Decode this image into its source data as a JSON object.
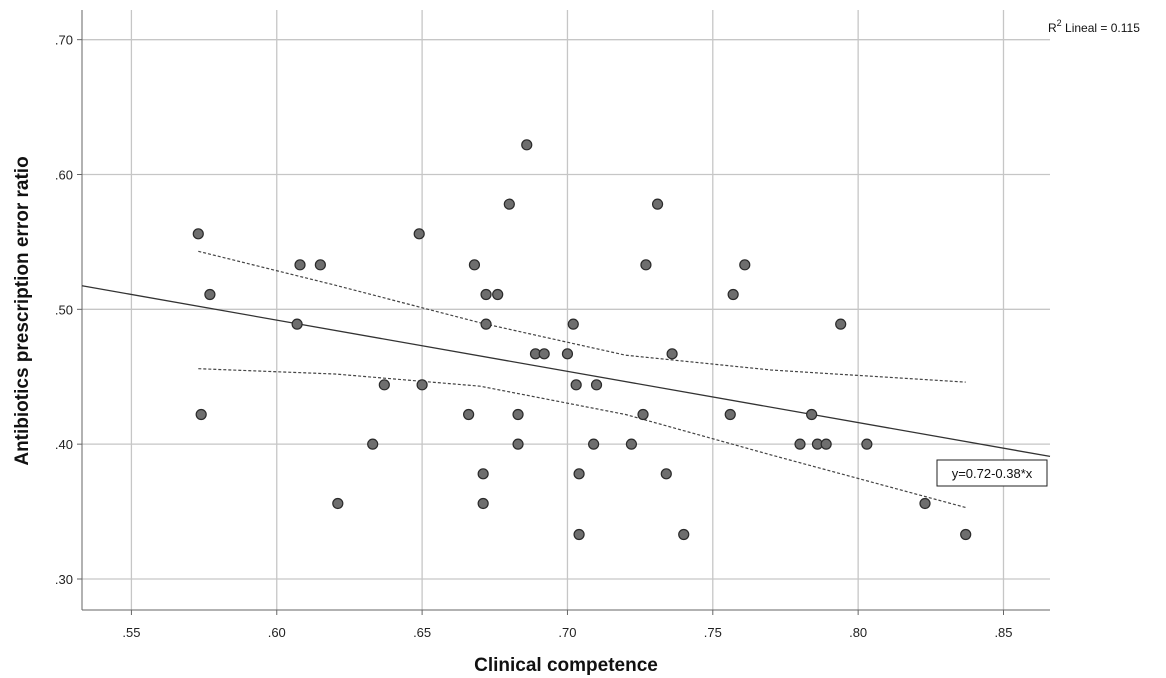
{
  "chart_data": {
    "type": "scatter",
    "title": "",
    "xlabel": "Clinical competence",
    "ylabel": "Antibiotics prescription error ratio",
    "xlim": [
      0.533,
      0.866
    ],
    "ylim": [
      0.277,
      0.722
    ],
    "xticks": [
      0.55,
      0.6,
      0.65,
      0.7,
      0.75,
      0.8,
      0.85
    ],
    "xtick_labels": [
      ".55",
      ".60",
      ".65",
      ".70",
      ".75",
      ".80",
      ".85"
    ],
    "yticks": [
      0.3,
      0.4,
      0.5,
      0.6,
      0.7
    ],
    "ytick_labels": [
      ".30",
      ".40",
      ".50",
      ".60",
      ".70"
    ],
    "grid": true,
    "points": [
      {
        "x": 0.573,
        "y": 0.556
      },
      {
        "x": 0.574,
        "y": 0.422
      },
      {
        "x": 0.577,
        "y": 0.511
      },
      {
        "x": 0.607,
        "y": 0.489
      },
      {
        "x": 0.608,
        "y": 0.533
      },
      {
        "x": 0.615,
        "y": 0.533
      },
      {
        "x": 0.621,
        "y": 0.356
      },
      {
        "x": 0.633,
        "y": 0.4
      },
      {
        "x": 0.637,
        "y": 0.444
      },
      {
        "x": 0.649,
        "y": 0.556
      },
      {
        "x": 0.65,
        "y": 0.444
      },
      {
        "x": 0.666,
        "y": 0.422
      },
      {
        "x": 0.668,
        "y": 0.533
      },
      {
        "x": 0.671,
        "y": 0.378
      },
      {
        "x": 0.671,
        "y": 0.356
      },
      {
        "x": 0.672,
        "y": 0.511
      },
      {
        "x": 0.672,
        "y": 0.489
      },
      {
        "x": 0.676,
        "y": 0.511
      },
      {
        "x": 0.68,
        "y": 0.578
      },
      {
        "x": 0.683,
        "y": 0.422
      },
      {
        "x": 0.683,
        "y": 0.4
      },
      {
        "x": 0.686,
        "y": 0.622
      },
      {
        "x": 0.689,
        "y": 0.467
      },
      {
        "x": 0.692,
        "y": 0.467
      },
      {
        "x": 0.7,
        "y": 0.467
      },
      {
        "x": 0.702,
        "y": 0.489
      },
      {
        "x": 0.703,
        "y": 0.444
      },
      {
        "x": 0.704,
        "y": 0.378
      },
      {
        "x": 0.704,
        "y": 0.333
      },
      {
        "x": 0.709,
        "y": 0.4
      },
      {
        "x": 0.71,
        "y": 0.444
      },
      {
        "x": 0.722,
        "y": 0.4
      },
      {
        "x": 0.726,
        "y": 0.422
      },
      {
        "x": 0.727,
        "y": 0.533
      },
      {
        "x": 0.731,
        "y": 0.578
      },
      {
        "x": 0.734,
        "y": 0.378
      },
      {
        "x": 0.736,
        "y": 0.467
      },
      {
        "x": 0.74,
        "y": 0.333
      },
      {
        "x": 0.756,
        "y": 0.422
      },
      {
        "x": 0.757,
        "y": 0.511
      },
      {
        "x": 0.761,
        "y": 0.533
      },
      {
        "x": 0.78,
        "y": 0.4
      },
      {
        "x": 0.784,
        "y": 0.422
      },
      {
        "x": 0.786,
        "y": 0.4
      },
      {
        "x": 0.789,
        "y": 0.4
      },
      {
        "x": 0.794,
        "y": 0.489
      },
      {
        "x": 0.803,
        "y": 0.4
      },
      {
        "x": 0.823,
        "y": 0.356
      },
      {
        "x": 0.837,
        "y": 0.333
      }
    ],
    "fit_line": {
      "intercept": 0.72,
      "slope": -0.38
    },
    "fit_line_extent": [
      0.533,
      0.866
    ],
    "ci_upper": [
      {
        "x": 0.573,
        "y": 0.543
      },
      {
        "x": 0.62,
        "y": 0.518
      },
      {
        "x": 0.67,
        "y": 0.49
      },
      {
        "x": 0.72,
        "y": 0.466
      },
      {
        "x": 0.77,
        "y": 0.455
      },
      {
        "x": 0.837,
        "y": 0.446
      }
    ],
    "ci_lower": [
      {
        "x": 0.573,
        "y": 0.456
      },
      {
        "x": 0.62,
        "y": 0.452
      },
      {
        "x": 0.67,
        "y": 0.443
      },
      {
        "x": 0.72,
        "y": 0.422
      },
      {
        "x": 0.77,
        "y": 0.392
      },
      {
        "x": 0.837,
        "y": 0.353
      }
    ],
    "r2_prefix": "R",
    "r2_superscript": "2",
    "r2_suffix": " Lineal = 0.115",
    "equation": "y=0.72-0.38*x",
    "colors": {
      "point_fill": "#6e6e6e",
      "point_stroke": "#2a2a2a",
      "grid": "#c6c6c6",
      "fit_line": "#333333",
      "ci_line": "#444444",
      "axis": "#666666"
    }
  }
}
